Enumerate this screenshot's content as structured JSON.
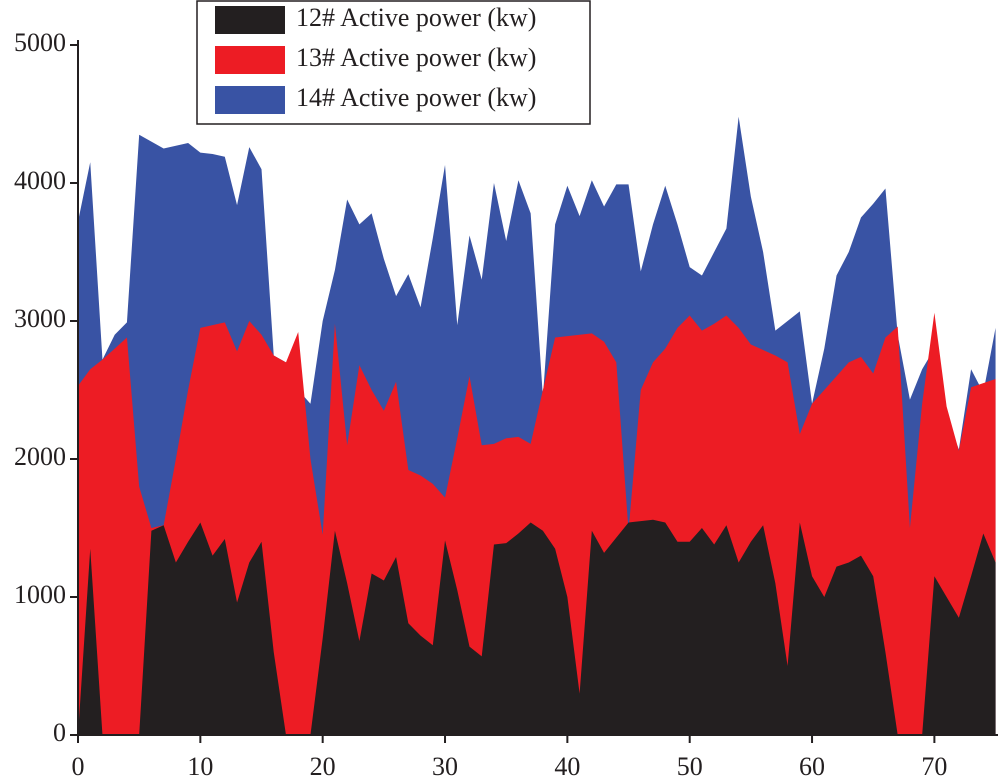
{
  "chart_data": {
    "type": "area",
    "x": [
      0,
      1,
      2,
      3,
      4,
      5,
      6,
      7,
      8,
      9,
      10,
      11,
      12,
      13,
      14,
      15,
      16,
      17,
      18,
      19,
      20,
      21,
      22,
      23,
      24,
      25,
      26,
      27,
      28,
      29,
      30,
      31,
      32,
      33,
      34,
      35,
      36,
      37,
      38,
      39,
      40,
      41,
      42,
      43,
      44,
      45,
      46,
      47,
      48,
      49,
      50,
      51,
      52,
      53,
      54,
      55,
      56,
      57,
      58,
      59,
      60,
      61,
      62,
      63,
      64,
      65,
      66,
      67,
      68,
      69,
      70,
      71,
      72,
      73,
      74,
      75
    ],
    "series": [
      {
        "name": "14# Active power (kw)",
        "color": "#3953a4",
        "values": [
          3720,
          4150,
          2720,
          2900,
          2990,
          4350,
          4300,
          4250,
          4270,
          4290,
          4220,
          4210,
          4190,
          3840,
          4260,
          4100,
          2750,
          2700,
          2500,
          2400,
          3000,
          3370,
          3880,
          3700,
          3780,
          3450,
          3180,
          3340,
          3100,
          3600,
          4130,
          2970,
          3620,
          3300,
          4000,
          3580,
          4020,
          3780,
          2450,
          3700,
          3980,
          3760,
          4020,
          3830,
          3990,
          3990,
          3360,
          3700,
          3980,
          3700,
          3390,
          3330,
          3500,
          3670,
          4480,
          3900,
          3500,
          2930,
          3000,
          3070,
          2400,
          2800,
          3330,
          3500,
          3750,
          3850,
          3960,
          2900,
          2430,
          2650,
          2800,
          2300,
          2070,
          2650,
          2480,
          2950
        ]
      },
      {
        "name": "13# Active power (kw)",
        "color": "#ed1c24",
        "values": [
          2530,
          2650,
          2720,
          2800,
          2880,
          1800,
          1500,
          1520,
          2000,
          2500,
          2950,
          2970,
          2990,
          2780,
          3000,
          2900,
          2750,
          2700,
          2920,
          2000,
          1450,
          2980,
          2100,
          2680,
          2500,
          2350,
          2560,
          1920,
          1880,
          1820,
          1720,
          2150,
          2600,
          2100,
          2110,
          2150,
          2160,
          2110,
          2500,
          2880,
          2890,
          2900,
          2910,
          2850,
          2700,
          1480,
          2500,
          2700,
          2800,
          2950,
          3040,
          2930,
          2980,
          3040,
          2950,
          2830,
          2790,
          2750,
          2700,
          2180,
          2400,
          2500,
          2600,
          2700,
          2740,
          2620,
          2880,
          2960,
          1500,
          2400,
          3060,
          2380,
          2060,
          2520,
          2550,
          2580
        ]
      },
      {
        "name": "12# Active power (kw)",
        "color": "#231f20",
        "values": [
          0,
          1350,
          0,
          0,
          0,
          0,
          1480,
          1520,
          1250,
          1400,
          1540,
          1300,
          1420,
          960,
          1250,
          1400,
          600,
          0,
          0,
          0,
          700,
          1480,
          1100,
          680,
          1170,
          1120,
          1290,
          810,
          720,
          650,
          1410,
          1050,
          640,
          570,
          1380,
          1390,
          1460,
          1540,
          1480,
          1350,
          1000,
          300,
          1480,
          1320,
          1430,
          1540,
          1550,
          1560,
          1540,
          1400,
          1400,
          1500,
          1380,
          1520,
          1250,
          1400,
          1520,
          1100,
          500,
          1540,
          1150,
          1000,
          1220,
          1250,
          1300,
          1150,
          600,
          0,
          0,
          0,
          1150,
          1000,
          850,
          1150,
          1460,
          1250
        ]
      }
    ],
    "xlim": [
      0,
      75.2
    ],
    "xticks": [
      0,
      10,
      20,
      30,
      40,
      50,
      60,
      70
    ],
    "ylim": [
      0,
      5000
    ],
    "yticks": [
      0,
      1000,
      2000,
      3000,
      4000,
      5000
    ]
  }
}
